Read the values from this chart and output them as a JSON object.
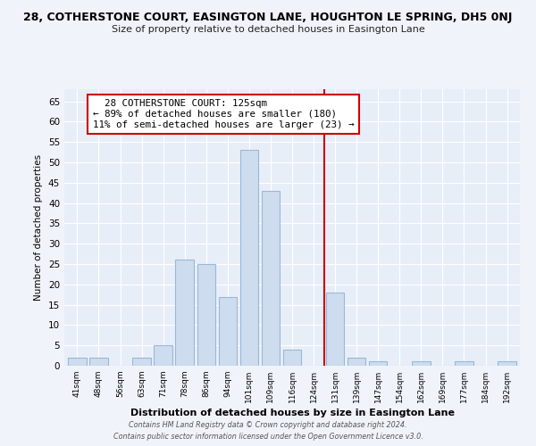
{
  "title_main": "28, COTHERSTONE COURT, EASINGTON LANE, HOUGHTON LE SPRING, DH5 0NJ",
  "title_sub": "Size of property relative to detached houses in Easington Lane",
  "xlabel": "Distribution of detached houses by size in Easington Lane",
  "ylabel": "Number of detached properties",
  "bar_labels": [
    "41sqm",
    "48sqm",
    "56sqm",
    "63sqm",
    "71sqm",
    "78sqm",
    "86sqm",
    "94sqm",
    "101sqm",
    "109sqm",
    "116sqm",
    "124sqm",
    "131sqm",
    "139sqm",
    "147sqm",
    "154sqm",
    "162sqm",
    "169sqm",
    "177sqm",
    "184sqm",
    "192sqm"
  ],
  "bar_values": [
    2,
    2,
    0,
    2,
    5,
    26,
    25,
    17,
    53,
    43,
    4,
    0,
    18,
    2,
    1,
    0,
    1,
    0,
    1,
    0,
    1
  ],
  "bar_color": "#cddcee",
  "bar_edge_color": "#9ab8d8",
  "vline_x": 11.5,
  "vline_color": "#cc0000",
  "ylim": [
    0,
    68
  ],
  "yticks": [
    0,
    5,
    10,
    15,
    20,
    25,
    30,
    35,
    40,
    45,
    50,
    55,
    60,
    65
  ],
  "annotation_title": "28 COTHERSTONE COURT: 125sqm",
  "annotation_line1": "← 89% of detached houses are smaller (180)",
  "annotation_line2": "11% of semi-detached houses are larger (23) →",
  "annotation_box_color": "#ffffff",
  "annotation_box_edge": "#cc0000",
  "footer1": "Contains HM Land Registry data © Crown copyright and database right 2024.",
  "footer2": "Contains public sector information licensed under the Open Government Licence v3.0.",
  "bg_color": "#f0f4fa",
  "plot_bg_color": "#e8eef8"
}
